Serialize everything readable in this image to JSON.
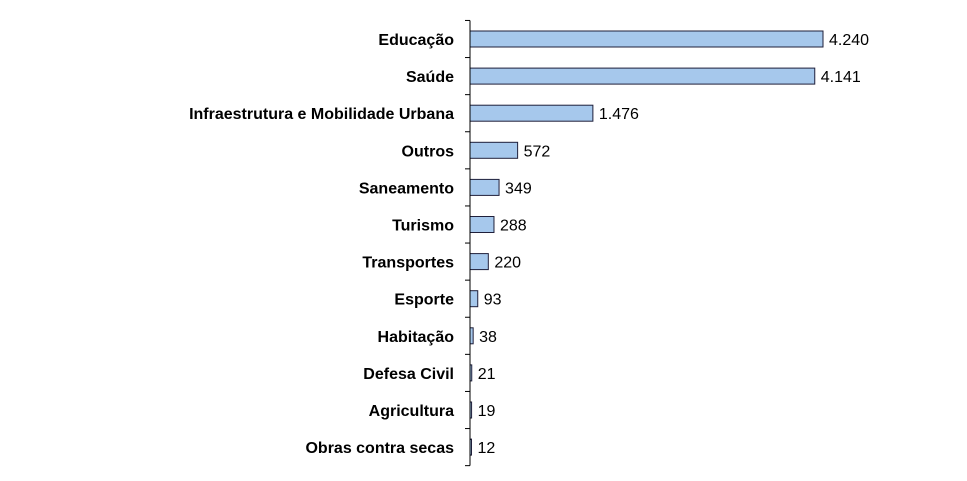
{
  "chart_data": {
    "type": "bar",
    "orientation": "horizontal",
    "categories": [
      "Educação",
      "Saúde",
      "Infraestrutura e Mobilidade Urbana",
      "Outros",
      "Saneamento",
      "Turismo",
      "Transportes",
      "Esporte",
      "Habitação",
      "Defesa Civil",
      "Agricultura",
      "Obras contra secas"
    ],
    "values": [
      4240,
      4141,
      1476,
      572,
      349,
      288,
      220,
      93,
      38,
      21,
      19,
      12
    ],
    "value_labels": [
      "4.240",
      "4.141",
      "1.476",
      "572",
      "349",
      "288",
      "220",
      "93",
      "38",
      "21",
      "19",
      "12"
    ],
    "title": "",
    "xlabel": "",
    "ylabel": "",
    "xlim": [
      0,
      4240
    ],
    "grid": false,
    "legend": "none",
    "bar_color": "#a6c8ec",
    "bar_edge_color": "#1f1f3a"
  }
}
